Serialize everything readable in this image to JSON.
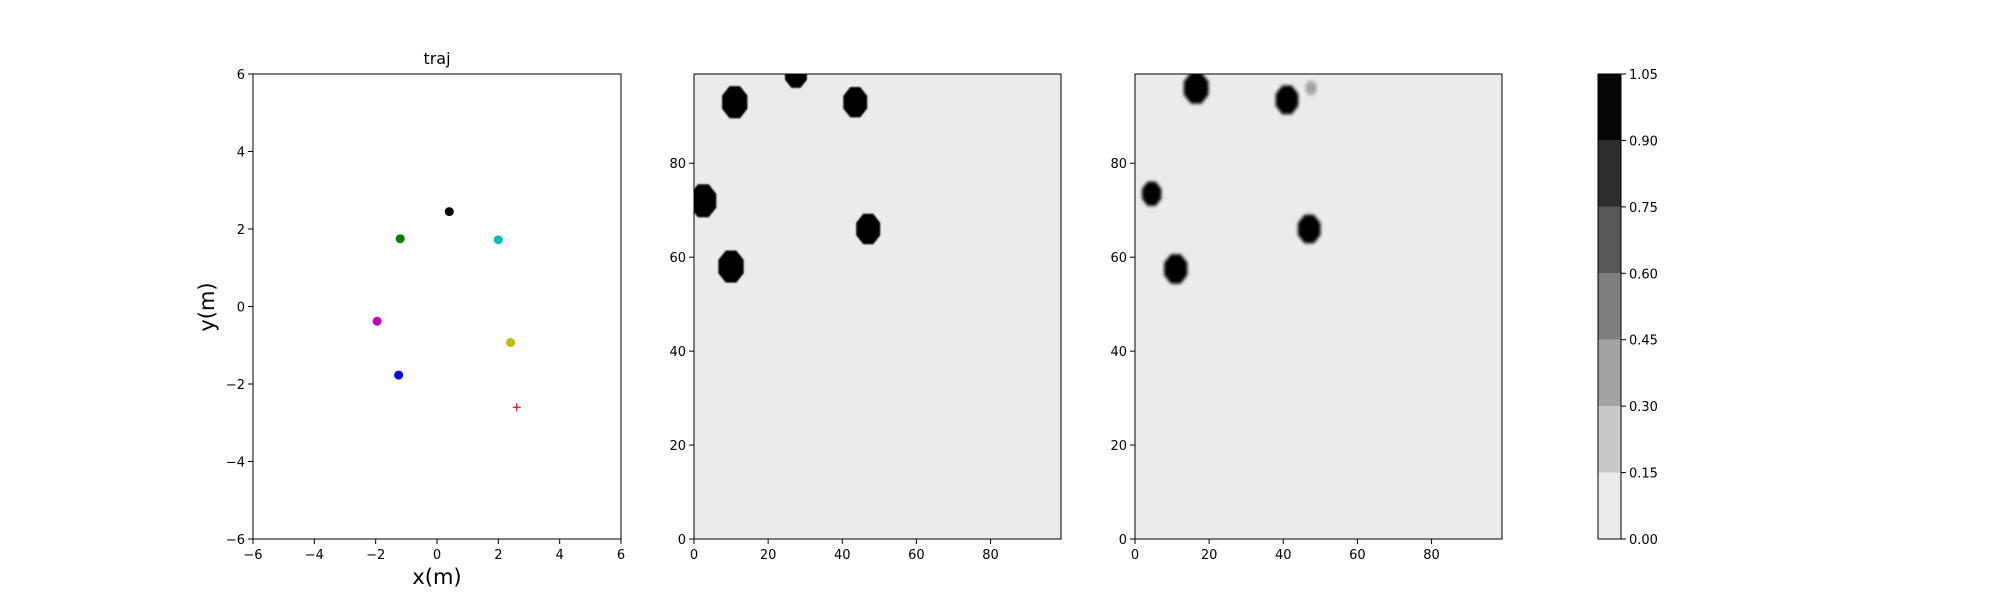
{
  "chart_data": [
    {
      "type": "scatter",
      "title": "traj",
      "xlabel": "x(m)",
      "ylabel": "y(m)",
      "xlim": [
        -6,
        6
      ],
      "ylim": [
        -6,
        6
      ],
      "xticks": [
        "−6",
        "−4",
        "−2",
        "0",
        "2",
        "4",
        "6"
      ],
      "yticks": [
        "−6",
        "−4",
        "−2",
        "0",
        "2",
        "4",
        "6"
      ],
      "points": [
        {
          "x": 0.4,
          "y": 2.45,
          "color": "#000000",
          "marker": "o"
        },
        {
          "x": -1.2,
          "y": 1.75,
          "color": "#008000",
          "marker": "o"
        },
        {
          "x": 2.0,
          "y": 1.72,
          "color": "#00bfbf",
          "marker": "o"
        },
        {
          "x": -1.95,
          "y": -0.38,
          "color": "#bf00bf",
          "marker": "o"
        },
        {
          "x": 2.4,
          "y": -0.93,
          "color": "#bfbf00",
          "marker": "o"
        },
        {
          "x": -1.25,
          "y": -1.77,
          "color": "#0000ff",
          "marker": "o"
        },
        {
          "x": 2.6,
          "y": -2.6,
          "color": "#ff0000",
          "marker": "+"
        }
      ]
    },
    {
      "type": "heatmap",
      "title": "",
      "xlim": [
        0,
        99
      ],
      "ylim": [
        0,
        99
      ],
      "xticks": [
        "0",
        "20",
        "40",
        "60",
        "80"
      ],
      "yticks": [
        "0",
        "20",
        "40",
        "60",
        "80"
      ],
      "background_value": 0.0,
      "blobs": [
        {
          "x": 11,
          "y": 93,
          "r": 3.7,
          "value": 1.0
        },
        {
          "x": 27.5,
          "y": 99,
          "r": 3.2,
          "value": 1.0
        },
        {
          "x": 43.5,
          "y": 93,
          "r": 3.5,
          "value": 1.0
        },
        {
          "x": 2.5,
          "y": 72,
          "r": 3.8,
          "value": 1.0
        },
        {
          "x": 47,
          "y": 66,
          "r": 3.5,
          "value": 1.0
        },
        {
          "x": 10,
          "y": 58,
          "r": 3.7,
          "value": 1.0
        }
      ]
    },
    {
      "type": "heatmap",
      "title": "",
      "xlim": [
        0,
        99
      ],
      "ylim": [
        0,
        99
      ],
      "xticks": [
        "0",
        "20",
        "40",
        "60",
        "80"
      ],
      "yticks": [
        "0",
        "20",
        "40",
        "60",
        "80"
      ],
      "background_value": 0.0,
      "blobs": [
        {
          "x": 16.5,
          "y": 96,
          "r": 3.6,
          "value": 1.0
        },
        {
          "x": 41,
          "y": 93.5,
          "r": 3.3,
          "value": 1.0
        },
        {
          "x": 47.5,
          "y": 96,
          "r": 1.6,
          "value": 0.4
        },
        {
          "x": 4.5,
          "y": 73.5,
          "r": 2.8,
          "value": 1.0
        },
        {
          "x": 47,
          "y": 66,
          "r": 3.3,
          "value": 1.0
        },
        {
          "x": 11,
          "y": 57.5,
          "r": 3.4,
          "value": 1.0
        }
      ]
    },
    {
      "type": "colorbar",
      "levels": [
        0.0,
        0.15,
        0.3,
        0.45,
        0.6,
        0.75,
        0.9,
        1.05
      ],
      "tick_labels": [
        "0.00",
        "0.15",
        "0.30",
        "0.45",
        "0.60",
        "0.75",
        "0.90",
        "1.05"
      ],
      "colors": [
        "#ebebeb",
        "#c9c9c9",
        "#a3a3a3",
        "#7e7e7e",
        "#575757",
        "#2d2d2d",
        "#060606"
      ]
    }
  ]
}
